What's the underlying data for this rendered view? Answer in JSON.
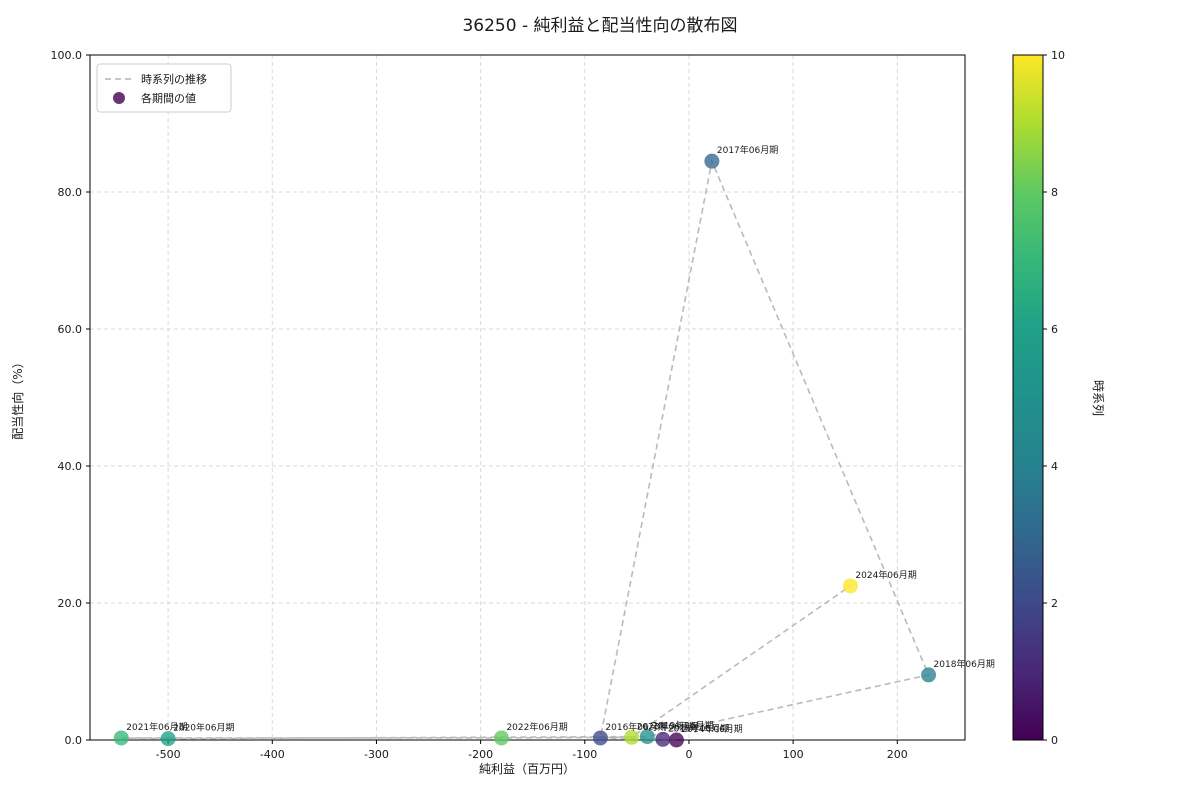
{
  "title": "36250 - 純利益と配当性向の散布図",
  "chart_data": {
    "type": "scatter",
    "title": "36250 - 純利益と配当性向の散布図",
    "xlabel": "純利益（百万円）",
    "ylabel": "配当性向（%）",
    "xlim": [
      -575,
      265
    ],
    "ylim": [
      0,
      100
    ],
    "grid": true,
    "x_ticks": [
      -500,
      -400,
      -300,
      -200,
      -100,
      0,
      100,
      200
    ],
    "x_tick_labels": [
      "-500",
      "-400",
      "-300",
      "-200",
      "-100",
      "0",
      "100",
      "200"
    ],
    "y_ticks": [
      0,
      20,
      40,
      60,
      80,
      100
    ],
    "y_tick_labels": [
      "0.0",
      "20.0",
      "40.0",
      "60.0",
      "80.0",
      "100.0"
    ],
    "legend": {
      "position": "top-left",
      "entries": [
        {
          "label": "時系列の推移",
          "type": "dashed-line",
          "color": "#b3b3b3"
        },
        {
          "label": "各期間の値",
          "type": "dot",
          "color": "#440154"
        }
      ]
    },
    "colorbar": {
      "label": "時系列",
      "min": 0,
      "max": 10,
      "ticks": [
        0,
        2,
        4,
        6,
        8,
        10
      ],
      "tick_labels": [
        "0",
        "2",
        "4",
        "6",
        "8",
        "10"
      ],
      "colormap": "viridis",
      "colors": [
        "#440154",
        "#482878",
        "#3e4989",
        "#31688e",
        "#26828e",
        "#21918c",
        "#1fa088",
        "#35b779",
        "#5ec962",
        "#addc30",
        "#fde725"
      ]
    },
    "line_style": {
      "color": "#b3b3b3",
      "dash": "6 4",
      "width": 1.6
    },
    "points": [
      {
        "label": "2014年06月期",
        "x": -12,
        "y": 0.0,
        "t": 0,
        "color": "#440154"
      },
      {
        "label": "2015年06月期",
        "x": -25,
        "y": 0.1,
        "t": 1,
        "color": "#482878"
      },
      {
        "label": "2016年06月期",
        "x": -85,
        "y": 0.3,
        "t": 2,
        "color": "#3e4989"
      },
      {
        "label": "2017年06月期",
        "x": 22,
        "y": 84.5,
        "t": 3,
        "color": "#31688e"
      },
      {
        "label": "2018年06月期",
        "x": 230,
        "y": 9.5,
        "t": 4,
        "color": "#26828e"
      },
      {
        "label": "2019年06月期",
        "x": -40,
        "y": 0.5,
        "t": 5,
        "color": "#21918c"
      },
      {
        "label": "2020年06月期",
        "x": -500,
        "y": 0.2,
        "t": 6,
        "color": "#1fa088"
      },
      {
        "label": "2021年06月期",
        "x": -545,
        "y": 0.3,
        "t": 7,
        "color": "#35b779"
      },
      {
        "label": "2022年06月期",
        "x": -180,
        "y": 0.3,
        "t": 8,
        "color": "#5ec962"
      },
      {
        "label": "2023年06月期",
        "x": -55,
        "y": 0.4,
        "t": 9,
        "color": "#addc30"
      },
      {
        "label": "2024年06月期",
        "x": 155,
        "y": 22.5,
        "t": 10,
        "color": "#fde725"
      }
    ]
  }
}
